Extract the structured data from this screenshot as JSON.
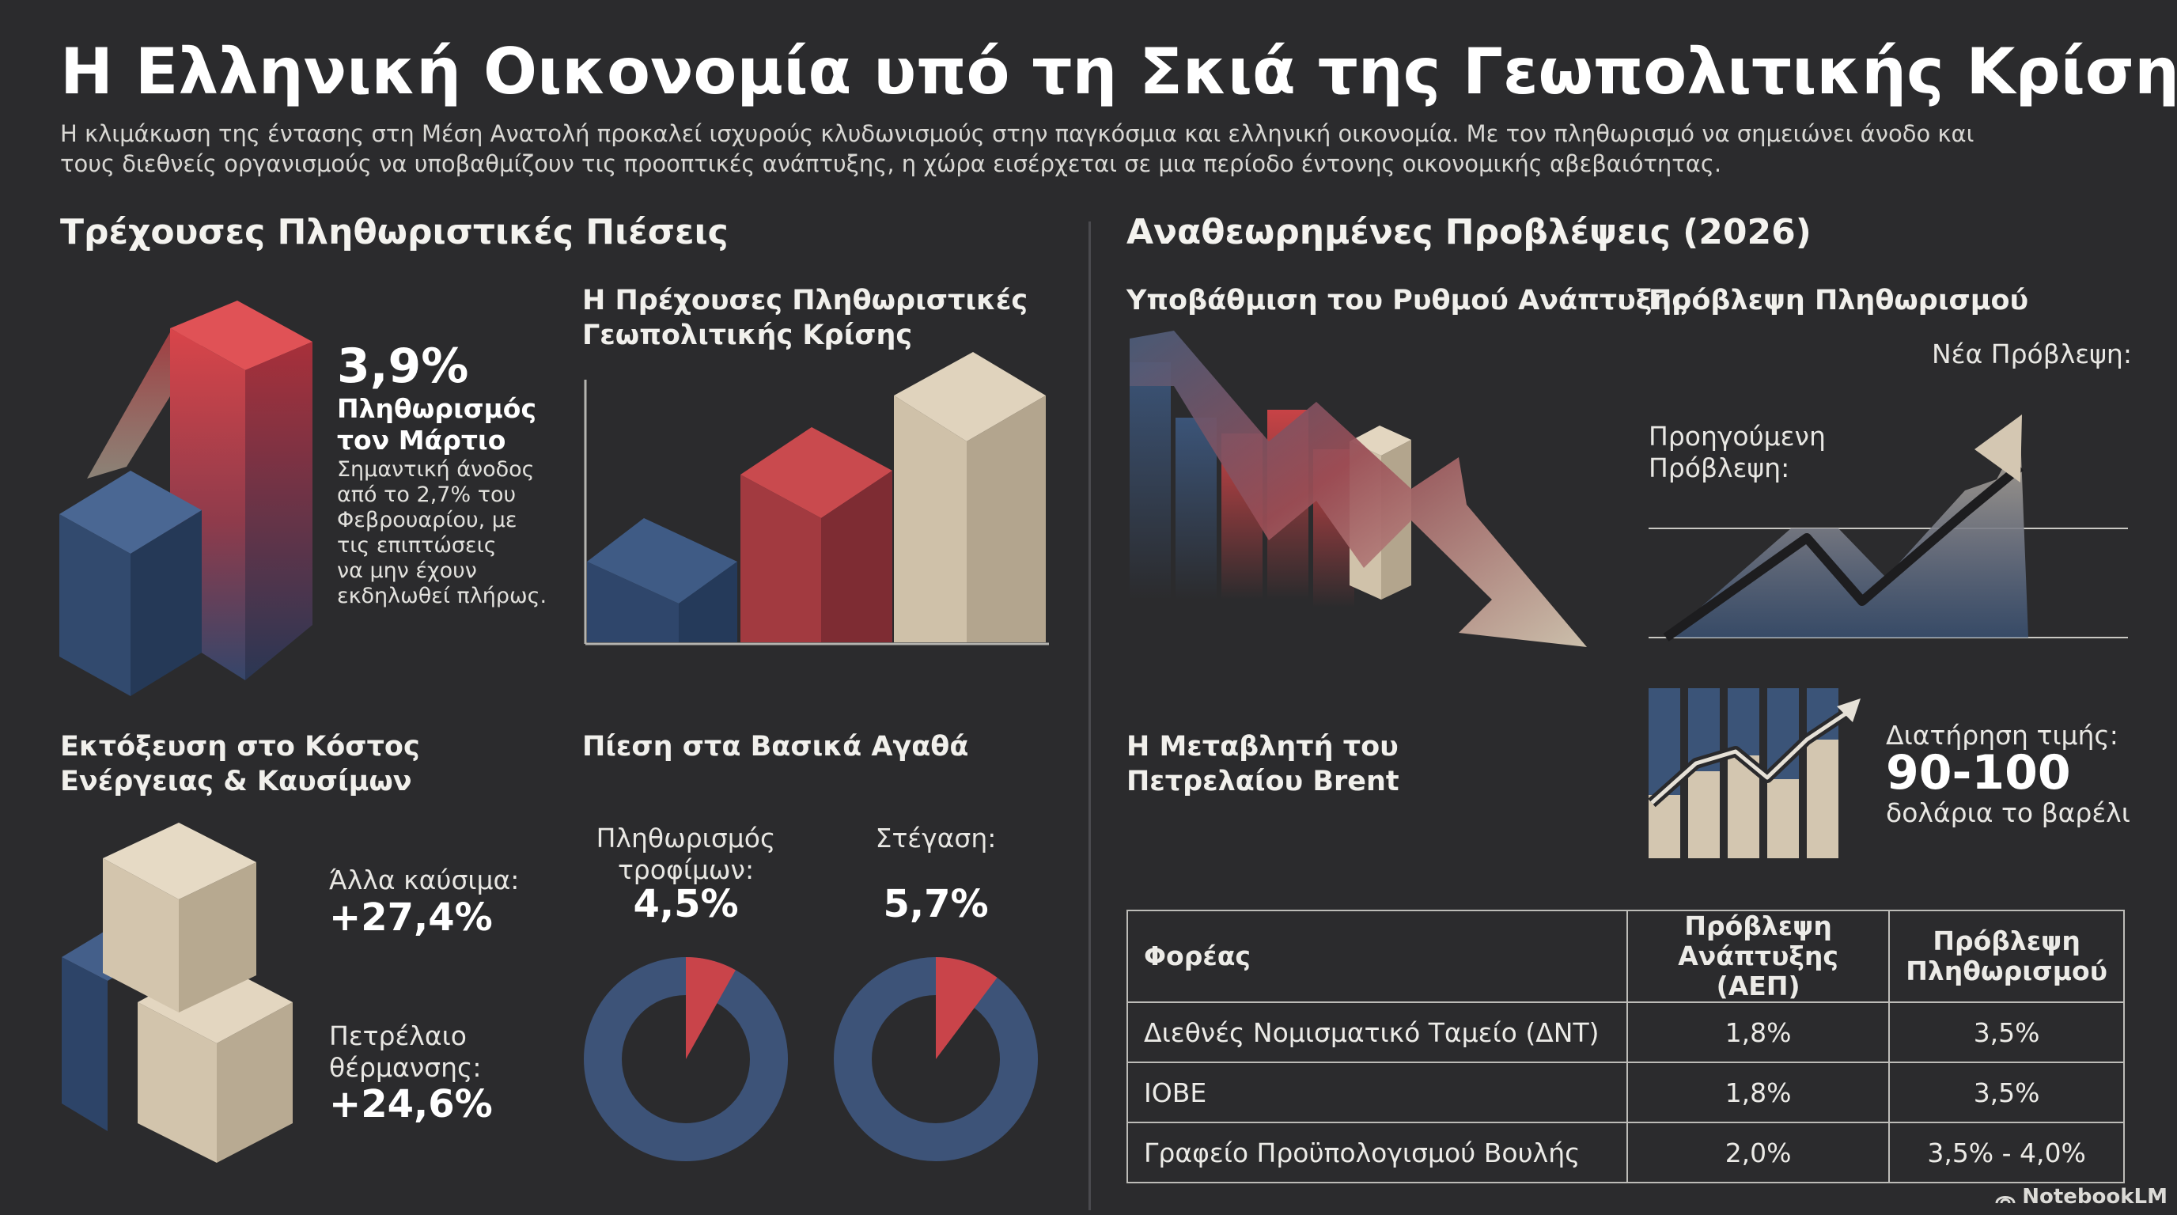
{
  "header": {
    "title": "Η Ελληνική Οικονομία υπό τη Σκιά της Γεωπολιτικής Κρίσης",
    "intro_line1": "Η κλιμάκωση της έντασης στη Μέση Ανατολή προκαλεί ισχυρούς κλυδωνισμούς στην παγκόσμια και ελληνική οικονομία. Με τον πληθωρισμό να σημειώνει άνοδο και",
    "intro_line2": "τους διεθνείς οργανισμούς να υποβαθμίζουν τις προοπτικές ανάπτυξης, η χώρα εισέρχεται σε μια περίοδο έντονης οικονομικής αβεβαιότητας."
  },
  "left_section": {
    "title": "Τρέχουσες Πληθωριστικές Πιέσεις",
    "march": {
      "value": "3,9%",
      "label_line1": "Πληθωρισμός",
      "label_line2": "τον Μάρτιο",
      "desc_lines": [
        "Σημαντική άνοδος",
        "από το 2,7% του",
        "Φεβρουαρίου, με",
        "τις επιπτώσεις",
        "να μην έχουν",
        "εκδηλωθεί πλήρως."
      ],
      "previous_value": 2.7,
      "current_value": 3.9
    },
    "geo_chart": {
      "title_line1": "Η Πρέχουσες Πληθωριστικές",
      "title_line2": "Γεωπολιτικής Κρίσης"
    },
    "energy": {
      "title_line1": "Εκτόξευση στο Κόστος",
      "title_line2": "Ενέργειας & Καυσίμων",
      "other_fuels_label": "Άλλα καύσιμα:",
      "other_fuels_value": "+27,4%",
      "heating_oil_label_line1": "Πετρέλαιο",
      "heating_oil_label_line2": "θέρμανσης:",
      "heating_oil_value": "+24,6%"
    },
    "basic_goods": {
      "title": "Πίεση στα Βασικά Αγαθά",
      "food_label_line1": "Πληθωρισμός",
      "food_label_line2": "τροφίμων:",
      "food_value": "4,5%",
      "food_percent": 4.5,
      "housing_label": "Στέγαση:",
      "housing_value": "5,7%",
      "housing_percent": 5.7
    }
  },
  "right_section": {
    "title": "Αναθεωρημένες Προβλέψεις (2026)",
    "growth": {
      "title": "Υποβάθμιση του Ρυθμού Ανάπτυξης"
    },
    "inflation_forecast": {
      "title": "Πρόβλεψη Πληθωρισμού",
      "new_label": "Νέα Πρόβλεψη:",
      "previous_label_line1": "Προηγούμενη",
      "previous_label_line2": "Πρόβλεψη:"
    },
    "brent": {
      "title_line1": "Η Μεταβλητή του",
      "title_line2": "Πετρελαίου Brent",
      "keep_label": "Διατήρηση τιμής:",
      "price_range": "90-100",
      "unit": "δολάρια το βαρέλι"
    },
    "table": {
      "headers": [
        "Φορέας",
        "Πρόβλεψη Ανάπτυξης (ΑΕΠ)",
        "Πρόβλεψη Πληθωρισμού"
      ],
      "header_lines": {
        "growth_line1": "Πρόβλεψη",
        "growth_line2": "Ανάπτυξης (ΑΕΠ)",
        "inflation_line1": "Πρόβλεψη",
        "inflation_line2": "Πληθωρισμού"
      },
      "rows": [
        {
          "org": "Διεθνές Νομισματικό Ταμείο (ΔΝΤ)",
          "gdp": "1,8%",
          "inflation": "3,5%"
        },
        {
          "org": "ΙΟΒΕ",
          "gdp": "1,8%",
          "inflation": "3,5%"
        },
        {
          "org": "Γραφείο Προϋπολογισμού Βουλής",
          "gdp": "2,0%",
          "inflation": "3,5% - 4,0%"
        }
      ]
    }
  },
  "footer": {
    "brand": "NotebookLM"
  },
  "colors": {
    "background": "#2b2b2d",
    "navy": "#3b5478",
    "red": "#c84346",
    "beige": "#d5c8b3"
  }
}
